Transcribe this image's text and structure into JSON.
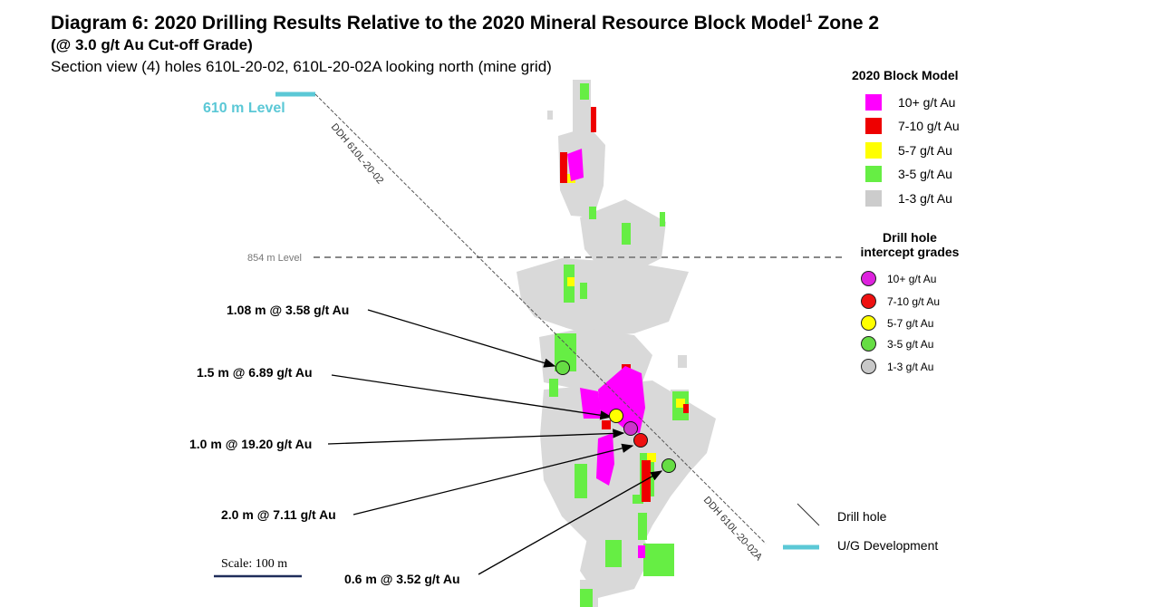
{
  "title": {
    "main": "Diagram 6: 2020 Drilling Results Relative to the 2020 Mineral Resource Block Model",
    "superscript": "1",
    "zone": " Zone 2",
    "subtitle": "(@ 3.0 g/t Au Cut-off Grade)",
    "section": "Section view (4) holes 610L-20-02, 610L-20-02A looking north (mine grid)"
  },
  "levels": {
    "level_610": "610 m Level",
    "level_854": "854 m Level"
  },
  "drill_holes": {
    "hole_02": "DDH 610L-20-02",
    "hole_02a": "DDH 610L-20-02A"
  },
  "intercepts": [
    {
      "label": "1.08 m @ 3.58 g/t Au",
      "grade_class": "3-5 g/t Au",
      "color": "#66dd44"
    },
    {
      "label": "1.5 m @ 6.89 g/t Au",
      "grade_class": "5-7 g/t Au",
      "color": "#ffff00"
    },
    {
      "label": "1.0 m @ 19.20 g/t Au",
      "grade_class": "10+ g/t Au",
      "color": "#cc33cc"
    },
    {
      "label": "2.0 m @ 7.11 g/t Au",
      "grade_class": "7-10 g/t Au",
      "color": "#ee1111"
    },
    {
      "label": "0.6 m @ 3.52 g/t Au",
      "grade_class": "3-5 g/t Au",
      "color": "#66dd44"
    }
  ],
  "legend_block_model": {
    "title": "2020 Block Model",
    "items": [
      {
        "label": "10+ g/t Au",
        "color": "#ff00ff"
      },
      {
        "label": "7-10 g/t Au",
        "color": "#ee0000"
      },
      {
        "label": "5-7 g/t Au",
        "color": "#ffff00"
      },
      {
        "label": "3-5 g/t Au",
        "color": "#66ee44"
      },
      {
        "label": "1-3 g/t Au",
        "color": "#cccccc"
      }
    ]
  },
  "legend_intercepts": {
    "title_line1": "Drill hole",
    "title_line2": "intercept grades",
    "items": [
      {
        "label": "10+ g/t Au",
        "color": "#dd22dd"
      },
      {
        "label": "7-10 g/t Au",
        "color": "#ee1111"
      },
      {
        "label": "5-7 g/t Au",
        "color": "#ffff00"
      },
      {
        "label": "3-5 g/t Au",
        "color": "#66dd44"
      },
      {
        "label": "1-3 g/t Au",
        "color": "#c8c8c8"
      }
    ]
  },
  "legend_symbols": {
    "drill_hole": "Drill hole",
    "ug_development": "U/G Development"
  },
  "scale": {
    "label": "Scale: 100 m"
  },
  "colors": {
    "ug_development": "#5bc8d6",
    "scale_bar": "#1f2d5a",
    "level_line": "#888888",
    "block_grey": "#d9d9d9"
  }
}
